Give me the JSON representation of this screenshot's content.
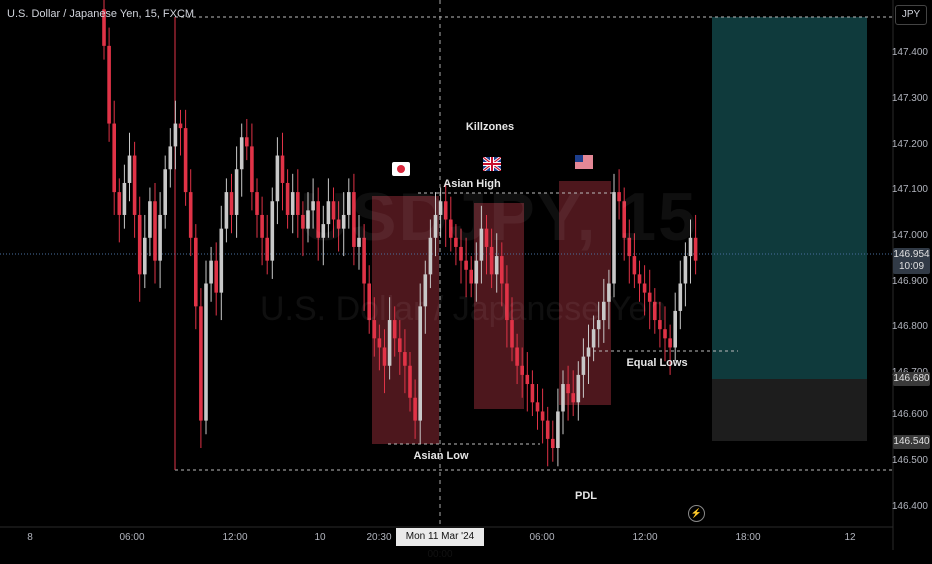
{
  "header": {
    "title": "U.S. Dollar / Japanese Yen, 15, FXCM",
    "currency_button": "JPY"
  },
  "watermark": {
    "symbol": "USDJPY, 15",
    "name": "U.S. Dollar / Japanese Yen"
  },
  "annotations": {
    "killzones": "Killzones",
    "asian_high": "Asian High",
    "asian_low": "Asian Low",
    "equal_lows": "Equal Lows",
    "pdl": "PDL"
  },
  "price_axis": {
    "ticks": [
      "147.400",
      "147.300",
      "147.200",
      "147.100",
      "147.000",
      "146.900",
      "146.800",
      "146.700",
      "146.600",
      "146.500",
      "146.400"
    ],
    "current_price": "146.954",
    "countdown": "10:09",
    "target_price": "146.680",
    "stop_price": "146.540"
  },
  "time_axis": {
    "ticks": [
      "8",
      "06:00",
      "12:00",
      "10",
      "20:30",
      "06:00",
      "12:00",
      "18:00",
      "12"
    ],
    "crosshair_label": "Mon 11 Mar '24  00:00"
  },
  "colors": {
    "up": "#c8c8c8",
    "down": "#e03347",
    "zone_fill": "#5a1b22",
    "target_fill": "#0f3a3c",
    "stop_fill": "#1d1d1d"
  },
  "icons": {
    "flags": [
      "japan-flag-icon",
      "uk-flag-icon",
      "us-flag-icon"
    ],
    "alert": "lightning-icon"
  },
  "chart_data": {
    "type": "candlestick",
    "symbol": "USDJPY",
    "timeframe": "15",
    "levels": {
      "asian_high": 147.09,
      "asian_low": 146.54,
      "equal_lows": 146.74,
      "pdl": 146.48
    },
    "position": {
      "entry": 146.954,
      "target": 146.68,
      "stop": 146.54
    },
    "closes": [
      147.42,
      147.25,
      147.1,
      147.05,
      147.12,
      147.18,
      147.05,
      146.92,
      147.0,
      147.08,
      146.95,
      147.05,
      147.15,
      147.2,
      147.25,
      147.24,
      147.1,
      147.0,
      146.85,
      146.6,
      146.9,
      146.95,
      146.88,
      147.02,
      147.1,
      147.05,
      147.15,
      147.22,
      147.2,
      147.1,
      147.05,
      147.0,
      146.95,
      147.08,
      147.18,
      147.12,
      147.05,
      147.1,
      147.05,
      147.02,
      147.06,
      147.08,
      147.0,
      147.03,
      147.08,
      147.04,
      147.02,
      147.05,
      147.1,
      146.98,
      147.0,
      146.9,
      146.82,
      146.78,
      146.76,
      146.72,
      146.82,
      146.78,
      146.75,
      146.72,
      146.65,
      146.6,
      146.85,
      146.92,
      147.0,
      147.05,
      147.08,
      147.04,
      147.0,
      146.98,
      146.95,
      146.93,
      146.9,
      146.95,
      147.02,
      146.98,
      146.92,
      146.96,
      146.9,
      146.82,
      146.76,
      146.72,
      146.7,
      146.68,
      146.64,
      146.62,
      146.6,
      146.56,
      146.54,
      146.62,
      146.68,
      146.66,
      146.64,
      146.7,
      146.74,
      146.76,
      146.8,
      146.82,
      146.86,
      146.9,
      147.1,
      147.08,
      147.0,
      146.96,
      146.92,
      146.9,
      146.88,
      146.86,
      146.82,
      146.8,
      146.78,
      146.76,
      146.84,
      146.9,
      146.96,
      147.0,
      146.95
    ]
  }
}
